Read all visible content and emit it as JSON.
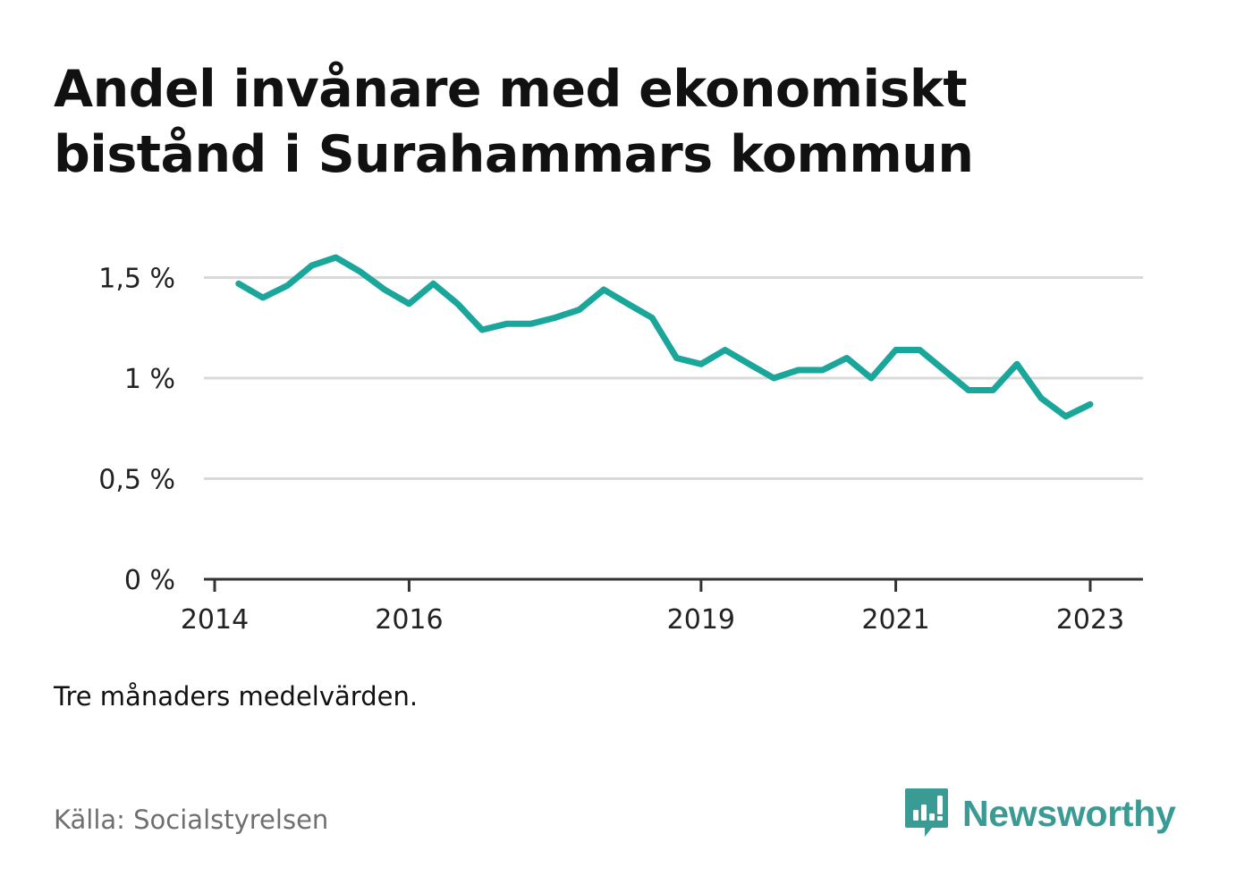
{
  "title": "Andel invånare med ekonomiskt bistånd i Surahammars kommun",
  "note": "Tre månaders medelvärden.",
  "source": "Källa: Socialstyrelsen",
  "brand": {
    "name": "Newsworthy",
    "icon": "newsworthy-logo-icon"
  },
  "colors": {
    "line": "#1aa69a",
    "grid": "#d9d9d9",
    "axis": "#333333",
    "text": "#111111",
    "brand": "#3a9a94"
  },
  "chart_data": {
    "type": "line",
    "title": "Andel invånare med ekonomiskt bistånd i Surahammars kommun",
    "xlabel": "",
    "ylabel": "",
    "ylim": [
      0,
      1.6
    ],
    "y_ticks": [
      {
        "value": 0,
        "label": "0 %"
      },
      {
        "value": 0.5,
        "label": "0,5 %"
      },
      {
        "value": 1,
        "label": "1 %"
      },
      {
        "value": 1.5,
        "label": "1,5 %"
      }
    ],
    "xlim": [
      "2014-01-01",
      "2023-06-01"
    ],
    "x_ticks": [
      {
        "value": "2014-01-01",
        "label": "2014"
      },
      {
        "value": "2016-01-01",
        "label": "2016"
      },
      {
        "value": "2019-01-01",
        "label": "2019"
      },
      {
        "value": "2021-01-01",
        "label": "2021"
      },
      {
        "value": "2023-01-01",
        "label": "2023"
      }
    ],
    "grid": true,
    "series": [
      {
        "points": [
          {
            "x": "2014-04-01",
            "y": 1.47
          },
          {
            "x": "2014-07-01",
            "y": 1.4
          },
          {
            "x": "2014-10-01",
            "y": 1.46
          },
          {
            "x": "2015-01-01",
            "y": 1.56
          },
          {
            "x": "2015-04-01",
            "y": 1.6
          },
          {
            "x": "2015-07-01",
            "y": 1.53
          },
          {
            "x": "2015-10-01",
            "y": 1.44
          },
          {
            "x": "2016-01-01",
            "y": 1.37
          },
          {
            "x": "2016-04-01",
            "y": 1.47
          },
          {
            "x": "2016-07-01",
            "y": 1.37
          },
          {
            "x": "2016-10-01",
            "y": 1.24
          },
          {
            "x": "2017-01-01",
            "y": 1.27
          },
          {
            "x": "2017-04-01",
            "y": 1.27
          },
          {
            "x": "2017-07-01",
            "y": 1.3
          },
          {
            "x": "2017-10-01",
            "y": 1.34
          },
          {
            "x": "2018-01-01",
            "y": 1.44
          },
          {
            "x": "2018-04-01",
            "y": 1.37
          },
          {
            "x": "2018-07-01",
            "y": 1.3
          },
          {
            "x": "2018-10-01",
            "y": 1.1
          },
          {
            "x": "2019-01-01",
            "y": 1.07
          },
          {
            "x": "2019-04-01",
            "y": 1.14
          },
          {
            "x": "2019-07-01",
            "y": 1.07
          },
          {
            "x": "2019-10-01",
            "y": 1.0
          },
          {
            "x": "2020-01-01",
            "y": 1.04
          },
          {
            "x": "2020-04-01",
            "y": 1.04
          },
          {
            "x": "2020-07-01",
            "y": 1.1
          },
          {
            "x": "2020-10-01",
            "y": 1.0
          },
          {
            "x": "2021-01-01",
            "y": 1.14
          },
          {
            "x": "2021-04-01",
            "y": 1.14
          },
          {
            "x": "2021-07-01",
            "y": 1.04
          },
          {
            "x": "2021-10-01",
            "y": 0.94
          },
          {
            "x": "2022-01-01",
            "y": 0.94
          },
          {
            "x": "2022-04-01",
            "y": 1.07
          },
          {
            "x": "2022-07-01",
            "y": 0.9
          },
          {
            "x": "2022-10-01",
            "y": 0.81
          },
          {
            "x": "2023-01-01",
            "y": 0.87
          }
        ]
      }
    ]
  }
}
